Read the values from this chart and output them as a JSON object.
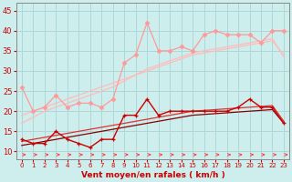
{
  "xlabel": "Vent moyen/en rafales ( km/h )",
  "bg_color": "#ceeeed",
  "grid_color": "#aed8d8",
  "x": [
    0,
    1,
    2,
    3,
    4,
    5,
    6,
    7,
    8,
    9,
    10,
    11,
    12,
    13,
    14,
    15,
    16,
    17,
    18,
    19,
    20,
    21,
    22,
    23
  ],
  "series_rafales": [
    26,
    20,
    21,
    24,
    21,
    22,
    22,
    21,
    23,
    32,
    34,
    42,
    35,
    35,
    36,
    35,
    39,
    40,
    39,
    39,
    39,
    37,
    40,
    40
  ],
  "series_moyen": [
    13,
    12,
    12,
    15,
    13,
    12,
    11,
    13,
    13,
    19,
    19,
    23,
    19,
    20,
    20,
    20,
    20,
    20,
    20,
    21,
    23,
    21,
    21,
    17
  ],
  "line_reg_raf1": [
    19.0,
    20.0,
    21.0,
    22.0,
    23.0,
    24.0,
    25.0,
    26.0,
    27.0,
    28.0,
    29.0,
    30.0,
    31.0,
    32.0,
    33.0,
    34.0,
    34.5,
    35.0,
    35.5,
    36.0,
    36.5,
    37.0,
    37.5,
    34.0
  ],
  "line_reg_raf2": [
    17.0,
    18.5,
    20.0,
    21.0,
    22.0,
    23.0,
    24.0,
    25.0,
    26.0,
    27.5,
    29.0,
    30.5,
    31.5,
    32.5,
    33.5,
    34.5,
    35.0,
    35.5,
    36.0,
    36.5,
    37.0,
    37.5,
    38.0,
    33.5
  ],
  "line_reg_mov1": [
    12.5,
    13.0,
    13.5,
    14.0,
    14.5,
    15.0,
    15.5,
    16.0,
    16.5,
    17.0,
    17.5,
    18.0,
    18.5,
    19.0,
    19.5,
    20.0,
    20.2,
    20.4,
    20.6,
    20.8,
    21.0,
    21.2,
    21.4,
    17.5
  ],
  "line_reg_mov2": [
    11.5,
    12.0,
    12.5,
    13.0,
    13.5,
    14.0,
    14.5,
    15.0,
    15.5,
    16.0,
    16.5,
    17.0,
    17.5,
    18.0,
    18.5,
    19.0,
    19.2,
    19.4,
    19.6,
    19.8,
    20.0,
    20.2,
    20.4,
    17.0
  ],
  "color_rafales": "#ff9999",
  "color_moyen": "#cc0000",
  "color_reg_raf1": "#ffbbbb",
  "color_reg_raf2": "#ffbbbb",
  "color_reg_mov1": "#dd3333",
  "color_reg_mov2": "#880000",
  "arrow_color": "#ff4444",
  "tick_color": "#cc0000",
  "label_color": "#cc0000",
  "spine_color": "#888888",
  "ylim": [
    8,
    47
  ],
  "yticks": [
    10,
    15,
    20,
    25,
    30,
    35,
    40,
    45
  ],
  "figsize": [
    3.2,
    2.0
  ],
  "dpi": 100
}
